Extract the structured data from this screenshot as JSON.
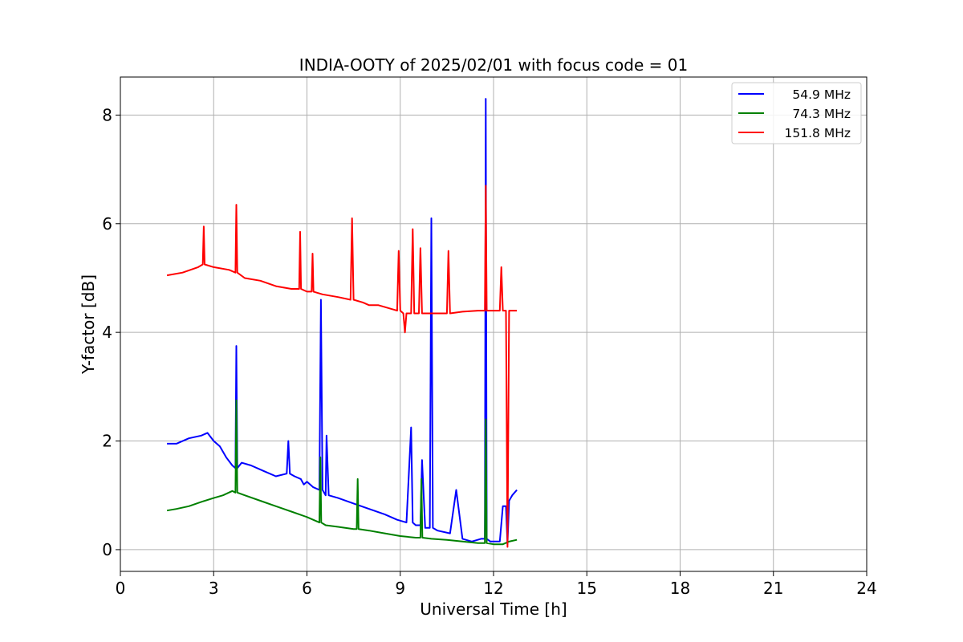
{
  "chart_data": {
    "type": "line",
    "title": "INDIA-OOTY of 2025/02/01 with focus code = 01",
    "xlabel": "Universal Time [h]",
    "ylabel": "Y-factor [dB]",
    "xlim": [
      0,
      24
    ],
    "ylim": [
      -0.4,
      8.7
    ],
    "xticks": [
      0,
      3,
      6,
      9,
      12,
      15,
      18,
      21,
      24
    ],
    "yticks": [
      0,
      2,
      4,
      6,
      8
    ],
    "grid": true,
    "legend_position": "top-right",
    "series": [
      {
        "name": "54.9 MHz",
        "color": "#0000ff",
        "x": [
          1.5,
          1.8,
          2.2,
          2.6,
          2.8,
          3.0,
          3.2,
          3.4,
          3.6,
          3.7,
          3.73,
          3.76,
          3.9,
          4.2,
          4.6,
          5.0,
          5.35,
          5.4,
          5.45,
          5.6,
          5.8,
          5.9,
          6.0,
          6.2,
          6.4,
          6.45,
          6.5,
          6.55,
          6.6,
          6.63,
          6.7,
          7.0,
          7.5,
          8.0,
          8.5,
          8.9,
          9.2,
          9.35,
          9.4,
          9.5,
          9.65,
          9.7,
          9.8,
          9.95,
          10.0,
          10.05,
          10.2,
          10.6,
          10.8,
          11.0,
          11.3,
          11.6,
          11.72,
          11.75,
          11.78,
          11.9,
          12.2,
          12.3,
          12.4,
          12.45,
          12.5,
          12.6,
          12.75
        ],
        "y": [
          1.95,
          1.95,
          2.05,
          2.1,
          2.15,
          2.0,
          1.9,
          1.7,
          1.55,
          1.5,
          3.75,
          1.5,
          1.6,
          1.55,
          1.45,
          1.35,
          1.4,
          2.0,
          1.4,
          1.35,
          1.3,
          1.2,
          1.25,
          1.15,
          1.1,
          4.6,
          1.1,
          1.05,
          1.0,
          2.1,
          1.0,
          0.95,
          0.85,
          0.75,
          0.65,
          0.55,
          0.5,
          2.25,
          0.5,
          0.45,
          0.45,
          1.65,
          0.4,
          0.4,
          6.1,
          0.4,
          0.35,
          0.3,
          1.1,
          0.2,
          0.15,
          0.2,
          0.2,
          8.3,
          0.2,
          0.15,
          0.15,
          0.8,
          0.8,
          0.1,
          0.9,
          1.0,
          1.1
        ]
      },
      {
        "name": "74.3 MHz",
        "color": "#008000",
        "x": [
          1.5,
          1.8,
          2.2,
          2.6,
          3.0,
          3.3,
          3.6,
          3.7,
          3.73,
          3.76,
          4.0,
          4.5,
          5.0,
          5.5,
          6.0,
          6.4,
          6.43,
          6.46,
          6.6,
          7.0,
          7.5,
          7.6,
          7.63,
          7.66,
          8.0,
          8.5,
          9.0,
          9.5,
          9.65,
          9.68,
          9.71,
          10.0,
          10.5,
          11.0,
          11.5,
          11.72,
          11.75,
          11.78,
          12.0,
          12.3,
          12.5,
          12.75
        ],
        "y": [
          0.72,
          0.75,
          0.8,
          0.88,
          0.95,
          1.0,
          1.08,
          1.05,
          2.75,
          1.05,
          1.0,
          0.9,
          0.8,
          0.7,
          0.6,
          0.5,
          1.7,
          0.5,
          0.45,
          0.42,
          0.38,
          0.38,
          1.3,
          0.38,
          0.35,
          0.3,
          0.25,
          0.22,
          0.22,
          1.3,
          0.22,
          0.2,
          0.18,
          0.15,
          0.12,
          0.12,
          2.4,
          0.12,
          0.1,
          0.1,
          0.15,
          0.18
        ]
      },
      {
        "name": "151.8 MHz",
        "color": "#ff0000",
        "x": [
          1.5,
          2.0,
          2.5,
          2.65,
          2.68,
          2.71,
          3.0,
          3.5,
          3.7,
          3.73,
          3.76,
          4.0,
          4.5,
          5.0,
          5.5,
          5.75,
          5.78,
          5.81,
          6.0,
          6.15,
          6.18,
          6.21,
          6.5,
          7.0,
          7.4,
          7.45,
          7.5,
          7.8,
          8.0,
          8.3,
          8.6,
          8.9,
          8.95,
          9.0,
          9.1,
          9.15,
          9.2,
          9.35,
          9.4,
          9.45,
          9.6,
          9.65,
          9.7,
          10.0,
          10.5,
          10.55,
          10.6,
          11.0,
          11.5,
          11.72,
          11.75,
          11.78,
          12.0,
          12.2,
          12.25,
          12.3,
          12.4,
          12.45,
          12.5,
          12.55,
          12.75
        ],
        "y": [
          5.05,
          5.1,
          5.2,
          5.25,
          5.95,
          5.25,
          5.2,
          5.15,
          5.1,
          6.35,
          5.1,
          5.0,
          4.95,
          4.85,
          4.8,
          4.8,
          5.85,
          4.8,
          4.75,
          4.75,
          5.45,
          4.75,
          4.7,
          4.65,
          4.6,
          6.1,
          4.6,
          4.55,
          4.5,
          4.5,
          4.45,
          4.4,
          5.5,
          4.4,
          4.35,
          4.0,
          4.35,
          4.35,
          5.9,
          4.35,
          4.35,
          5.55,
          4.35,
          4.35,
          4.35,
          5.5,
          4.35,
          4.38,
          4.4,
          4.4,
          6.7,
          4.4,
          4.4,
          4.4,
          5.2,
          4.4,
          4.4,
          0.05,
          4.4,
          4.4,
          4.4
        ]
      }
    ]
  }
}
